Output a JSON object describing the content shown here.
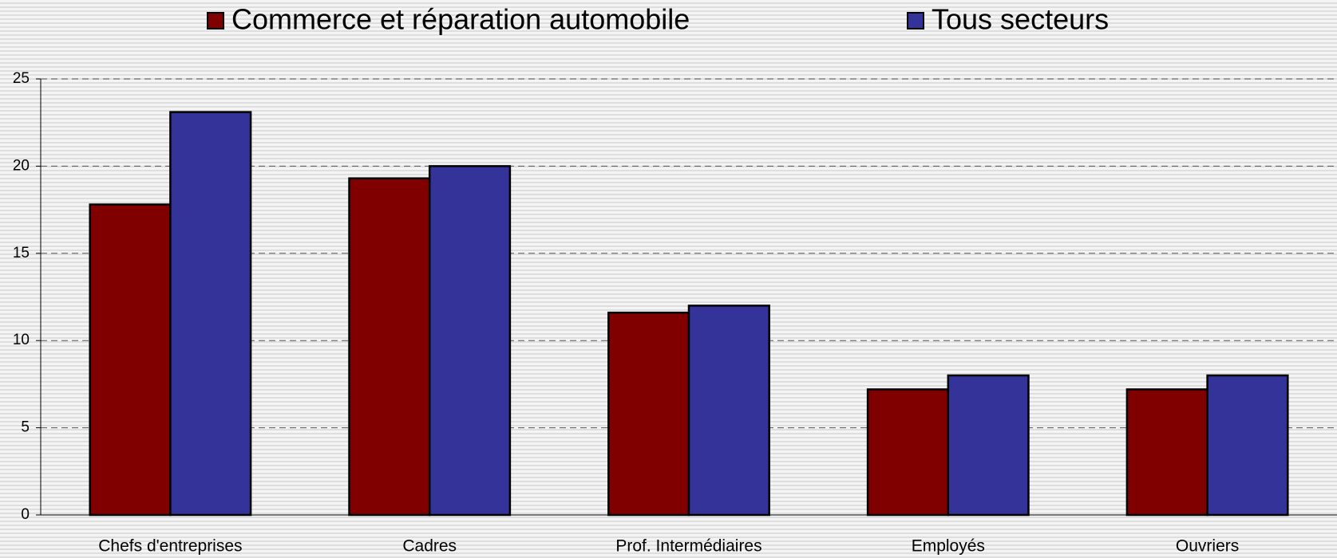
{
  "chart_data": {
    "type": "bar",
    "categories": [
      "Chefs d'entreprises",
      "Cadres",
      "Prof. Intermédiaires",
      "Employés",
      "Ouvriers"
    ],
    "series": [
      {
        "name": "Commerce et réparation automobile",
        "color": "#800000",
        "values": [
          17.8,
          19.3,
          11.6,
          7.2,
          7.2
        ]
      },
      {
        "name": "Tous secteurs",
        "color": "#333399",
        "values": [
          23.1,
          20.0,
          12.0,
          8.0,
          8.0
        ]
      }
    ],
    "ylim": [
      0,
      25
    ],
    "yticks": [
      0,
      5,
      10,
      15,
      20,
      25
    ],
    "grid": true
  }
}
